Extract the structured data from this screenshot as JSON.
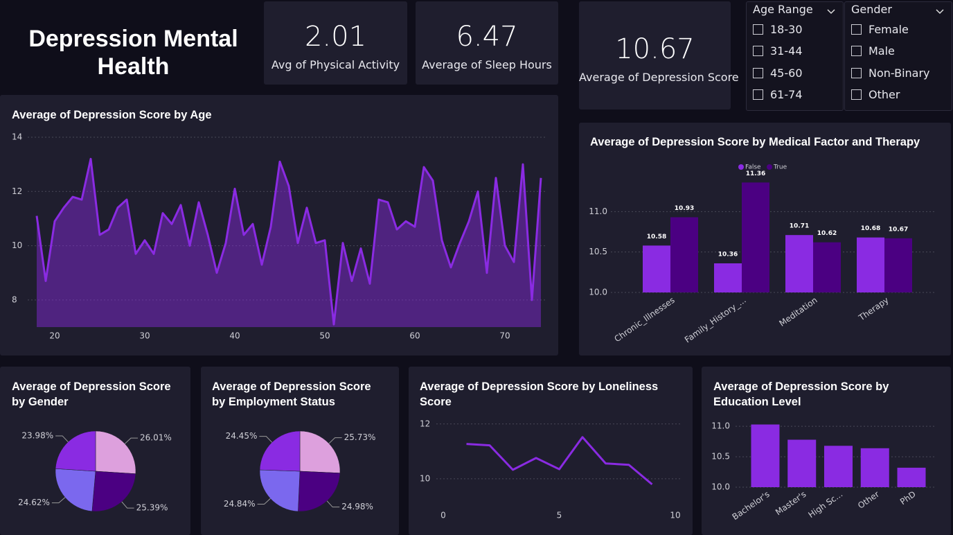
{
  "title": "Depression Mental Health",
  "kpis": [
    {
      "value": 2.01,
      "label": "Avg of Physical Activity"
    },
    {
      "value": 6.47,
      "label": "Average of Sleep Hours"
    },
    {
      "value": 10.67,
      "label": "Average of Depression Score"
    }
  ],
  "slicers": [
    {
      "title": "Age Range",
      "options": [
        "18-30",
        "31-44",
        "45-60",
        "61-74"
      ]
    },
    {
      "title": "Gender",
      "options": [
        "Female",
        "Male",
        "Non-Binary",
        "Other"
      ]
    }
  ],
  "chart_data": [
    {
      "type": "area",
      "title": "Average of Depression Score by Age",
      "x": [
        18,
        19,
        20,
        21,
        22,
        23,
        24,
        25,
        26,
        27,
        28,
        29,
        30,
        31,
        32,
        33,
        34,
        35,
        36,
        37,
        38,
        39,
        40,
        41,
        42,
        43,
        44,
        45,
        46,
        47,
        48,
        49,
        50,
        51,
        52,
        53,
        54,
        55,
        56,
        57,
        58,
        59,
        60,
        61,
        62,
        63,
        64,
        65,
        66,
        67,
        68,
        69,
        70,
        71,
        72,
        73,
        74
      ],
      "values": [
        11.1,
        8.7,
        10.9,
        11.4,
        11.8,
        11.7,
        13.2,
        10.4,
        10.6,
        11.4,
        11.7,
        9.7,
        10.2,
        9.7,
        11.2,
        10.8,
        11.5,
        10.0,
        11.6,
        10.4,
        9.0,
        10.1,
        12.1,
        10.4,
        10.8,
        9.3,
        10.7,
        13.1,
        12.2,
        10.1,
        11.4,
        10.1,
        10.2,
        7.1,
        10.1,
        8.7,
        9.9,
        8.6,
        11.7,
        11.6,
        10.6,
        10.9,
        10.7,
        12.9,
        12.4,
        10.2,
        9.2,
        10.1,
        10.9,
        12.0,
        9.0,
        12.5,
        10.0,
        9.4,
        13.0,
        8.0,
        12.5
      ],
      "color": "#8a2be2",
      "xlim": [
        18,
        74
      ],
      "ylim": [
        7,
        14
      ],
      "xticks": [
        20,
        30,
        40,
        50,
        60,
        70
      ],
      "yticks": [
        8,
        10,
        12,
        14
      ],
      "grid": true
    },
    {
      "type": "grouped-bar",
      "title": "Average of Depression Score by Medical Factor and Therapy",
      "categories": [
        "Chronic_Illnesses",
        "Family_History_...",
        "Meditation",
        "Therapy"
      ],
      "series": [
        {
          "name": "False",
          "color": "#8a2be2",
          "values": [
            10.58,
            10.36,
            10.71,
            10.68
          ]
        },
        {
          "name": "True",
          "color": "#4b0082",
          "values": [
            10.93,
            11.36,
            10.62,
            10.67
          ]
        }
      ],
      "ylim": [
        10,
        11.5
      ],
      "yticks": [
        {
          "value": 10,
          "label": "10.0"
        },
        10.5,
        {
          "value": 11,
          "label": "11.0"
        }
      ],
      "grid": true,
      "legend": "top"
    },
    {
      "type": "pie",
      "title": "Average of Depression Score by Gender",
      "values": [
        26.01,
        25.39,
        24.62,
        23.98
      ],
      "value_labels": [
        "26.01%",
        "25.39%",
        "24.62%",
        "23.98%"
      ],
      "colors": [
        "#dda0dd",
        "#4b0082",
        "#7b68ee",
        "#8a2be2"
      ]
    },
    {
      "type": "pie",
      "title": "Average of Depression Score by Employment Status",
      "values": [
        25.73,
        24.98,
        24.84,
        24.45
      ],
      "value_labels": [
        "25.73%",
        "24.98%",
        "24.84%",
        "24.45%"
      ],
      "colors": [
        "#dda0dd",
        "#4b0082",
        "#7b68ee",
        "#8a2be2"
      ]
    },
    {
      "type": "line",
      "title": "Average of Depression Score by Loneliness Score",
      "x": [
        1,
        2,
        3,
        4,
        5,
        6,
        7,
        8,
        9
      ],
      "values": [
        11.27,
        11.22,
        10.33,
        10.76,
        10.35,
        11.52,
        10.56,
        10.51,
        9.8
      ],
      "color": "#8a2be2",
      "xlim": [
        0,
        10
      ],
      "ylim": [
        9,
        12.5
      ],
      "xticks": [
        0,
        5,
        10
      ],
      "yticks": [
        10,
        12
      ],
      "grid": true
    },
    {
      "type": "bar",
      "title": "Average of Depression Score by Education Level",
      "categories": [
        "Bachelor's",
        "Master's",
        "High Sc...",
        "Other",
        "PhD"
      ],
      "values": [
        11.03,
        10.78,
        10.68,
        10.64,
        10.32
      ],
      "color": "#8a2be2",
      "ylim": [
        10,
        11.15
      ],
      "yticks": [
        {
          "value": 10,
          "label": "10.0"
        },
        10.5,
        {
          "value": 11,
          "label": "11.0"
        }
      ],
      "grid": true
    }
  ]
}
